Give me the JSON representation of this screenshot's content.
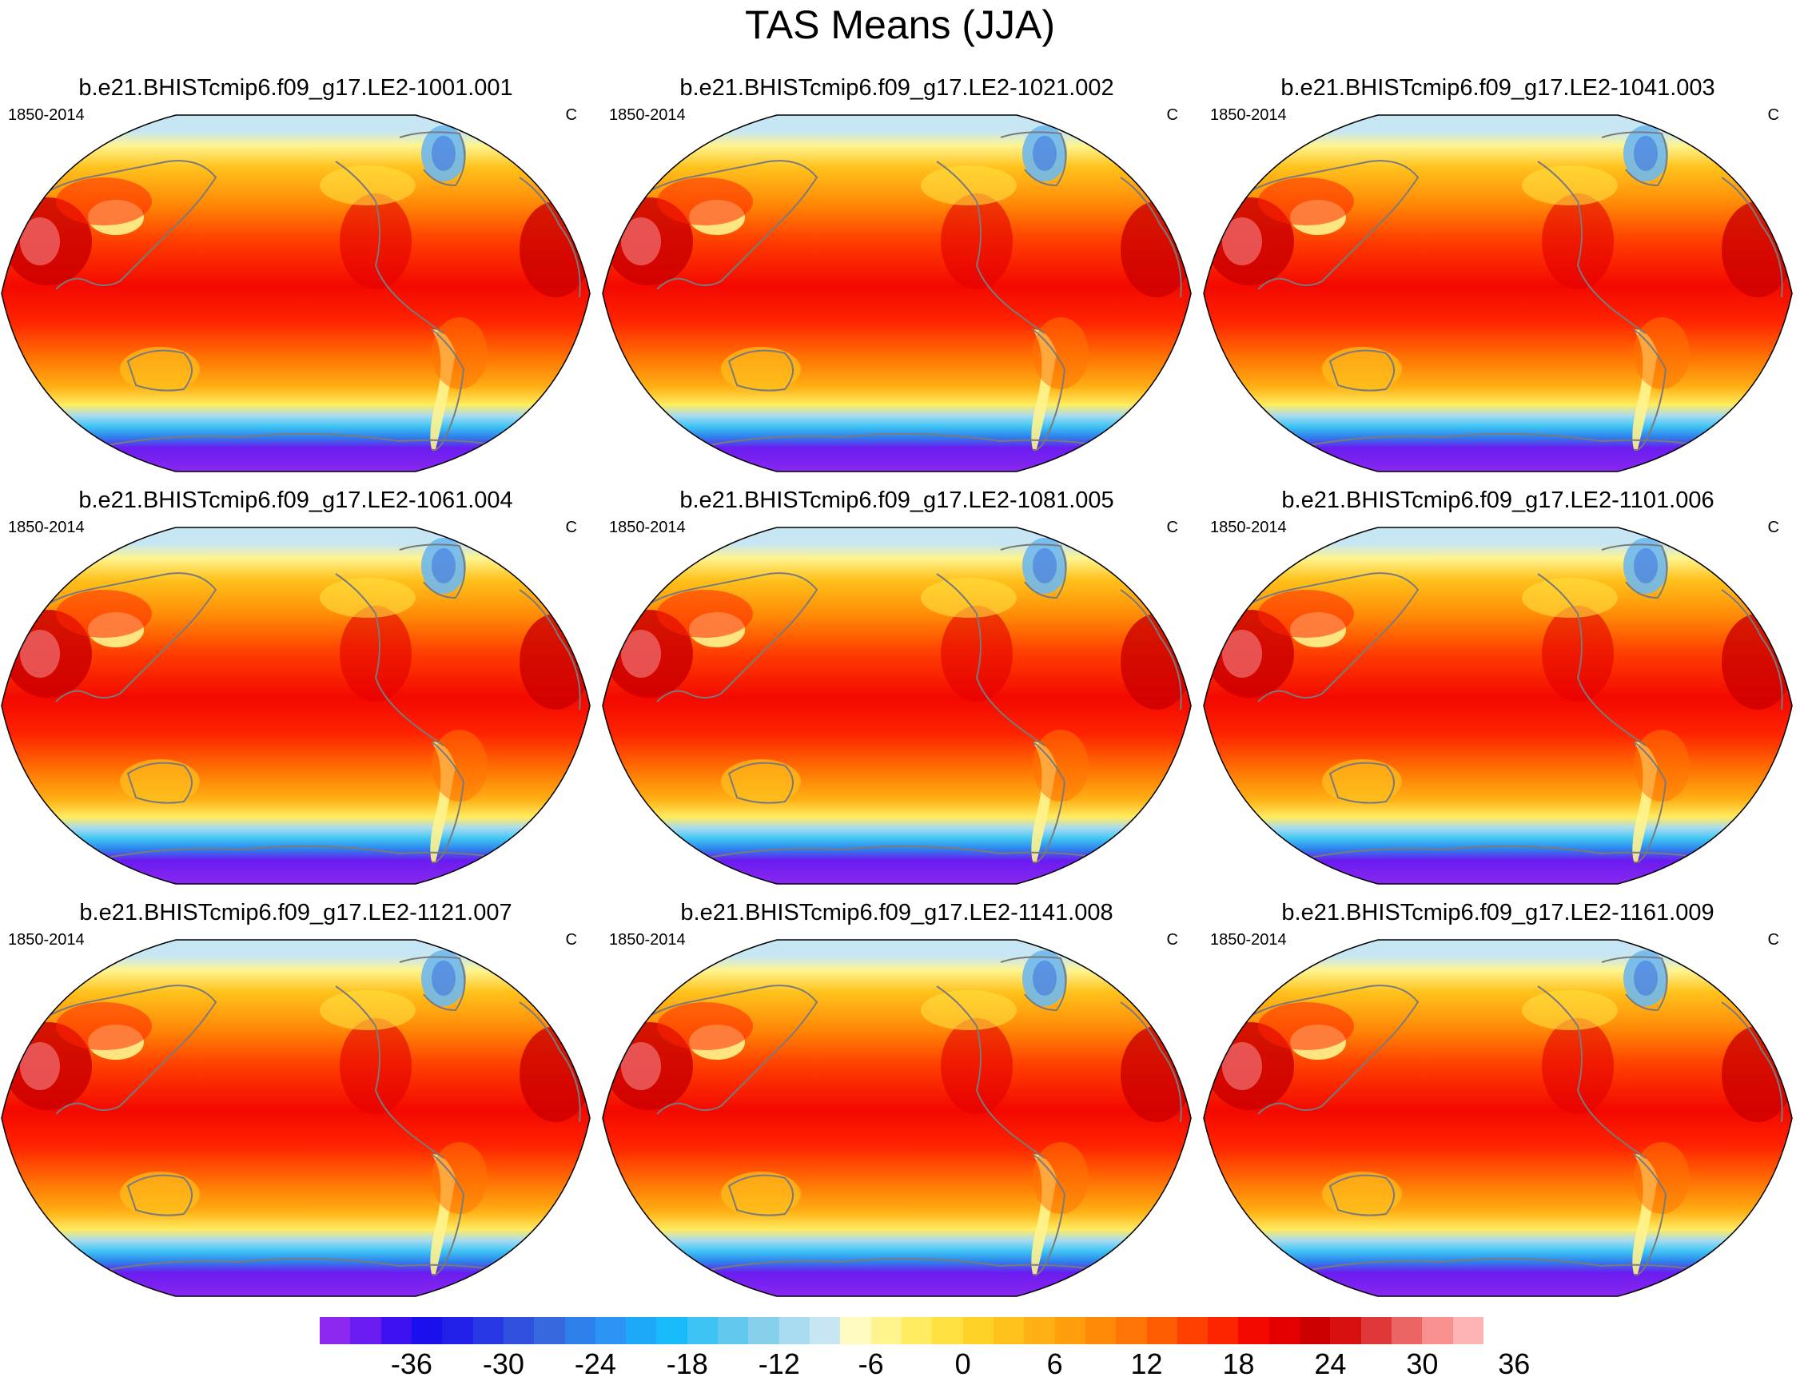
{
  "title": "TAS Means (JJA)",
  "panels": [
    {
      "title": "b.e21.BHISTcmip6.f09_g17.LE2-1001.001",
      "left_label": "1850-2014",
      "right_label": "C"
    },
    {
      "title": "b.e21.BHISTcmip6.f09_g17.LE2-1021.002",
      "left_label": "1850-2014",
      "right_label": "C"
    },
    {
      "title": "b.e21.BHISTcmip6.f09_g17.LE2-1041.003",
      "left_label": "1850-2014",
      "right_label": "C"
    },
    {
      "title": "b.e21.BHISTcmip6.f09_g17.LE2-1061.004",
      "left_label": "1850-2014",
      "right_label": "C"
    },
    {
      "title": "b.e21.BHISTcmip6.f09_g17.LE2-1081.005",
      "left_label": "1850-2014",
      "right_label": "C"
    },
    {
      "title": "b.e21.BHISTcmip6.f09_g17.LE2-1101.006",
      "left_label": "1850-2014",
      "right_label": "C"
    },
    {
      "title": "b.e21.BHISTcmip6.f09_g17.LE2-1121.007",
      "left_label": "1850-2014",
      "right_label": "C"
    },
    {
      "title": "b.e21.BHISTcmip6.f09_g17.LE2-1141.008",
      "left_label": "1850-2014",
      "right_label": "C"
    },
    {
      "title": "b.e21.BHISTcmip6.f09_g17.LE2-1161.009",
      "left_label": "1850-2014",
      "right_label": "C"
    }
  ],
  "colorbar": {
    "labels": [
      "-36",
      "-30",
      "-24",
      "-18",
      "-12",
      "-6",
      "0",
      "6",
      "12",
      "18",
      "24",
      "30",
      "36"
    ],
    "colors": [
      "#8c28f0",
      "#6a1cf0",
      "#3d10f0",
      "#1a10ee",
      "#2020e8",
      "#2838e4",
      "#3050e0",
      "#3668e0",
      "#2e80ec",
      "#2c94f4",
      "#20a8f8",
      "#18bcfa",
      "#3ec4f4",
      "#62c8ee",
      "#86d0ec",
      "#a8dcf0",
      "#c6e6f4",
      "#fffbc0",
      "#fff48e",
      "#ffec60",
      "#ffe040",
      "#ffd228",
      "#ffc21c",
      "#ffb014",
      "#ff9e0a",
      "#ff8a06",
      "#ff7404",
      "#ff5c02",
      "#ff4000",
      "#ff2400",
      "#f40800",
      "#e40000",
      "#cc0000",
      "#d81010",
      "#e03838",
      "#ec6464",
      "#f89090",
      "#ffb4b4"
    ]
  }
}
